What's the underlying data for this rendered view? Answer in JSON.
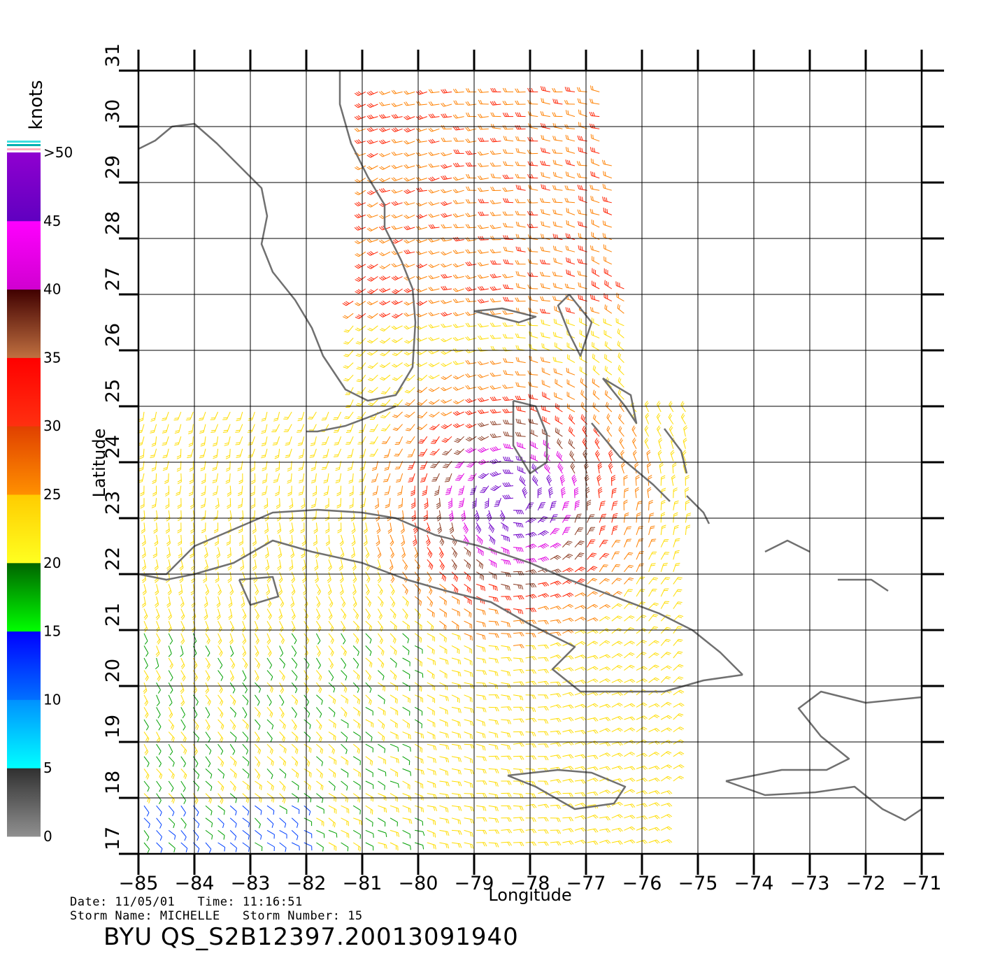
{
  "map": {
    "x_axis_label": "Longitude",
    "y_axis_label": "Latitude",
    "lon_ticks": [
      -85,
      -84,
      -83,
      -82,
      -81,
      -80,
      -79,
      -78,
      -77,
      -76,
      -75,
      -74,
      -73,
      -72,
      -71
    ],
    "lat_ticks": [
      17,
      18,
      19,
      20,
      21,
      22,
      23,
      24,
      25,
      26,
      27,
      28,
      29,
      30,
      31
    ],
    "lon_range": [
      -85,
      -71
    ],
    "lat_range": [
      17,
      31
    ],
    "grid": true,
    "land_color": "#707070"
  },
  "legend": {
    "unit_label": "knots",
    "tick_labels": [
      "0",
      "5",
      "10",
      "15",
      "20",
      "25",
      "30",
      "35",
      "40",
      "45",
      ">50"
    ],
    "color_stops": [
      {
        "from": 0,
        "to": 5,
        "top": "#303030",
        "bottom": "#909090"
      },
      {
        "from": 5,
        "to": 10,
        "top": "#0090ff",
        "bottom": "#00ffff"
      },
      {
        "from": 10,
        "to": 15,
        "top": "#0000ff",
        "bottom": "#0070ff"
      },
      {
        "from": 15,
        "to": 20,
        "top": "#006400",
        "bottom": "#00ff00"
      },
      {
        "from": 20,
        "to": 25,
        "top": "#ffcc00",
        "bottom": "#ffff20"
      },
      {
        "from": 25,
        "to": 30,
        "top": "#e04000",
        "bottom": "#ff9000"
      },
      {
        "from": 30,
        "to": 35,
        "top": "#ff0000",
        "bottom": "#ff3010"
      },
      {
        "from": 35,
        "to": 40,
        "top": "#400000",
        "bottom": "#c07040"
      },
      {
        "from": 40,
        "to": 45,
        "top": "#ff00ff",
        "bottom": "#d000d0"
      },
      {
        "from": 45,
        "to": 50,
        "top": "#9000d0",
        "bottom": "#6000c0"
      }
    ]
  },
  "info": {
    "date_line": "Date: 11/05/01   Time: 11:16:51",
    "storm_line": "Storm Name: MICHELLE   Storm Number: 15",
    "product_id": "BYU QS_S2B12397.20013091940"
  }
}
